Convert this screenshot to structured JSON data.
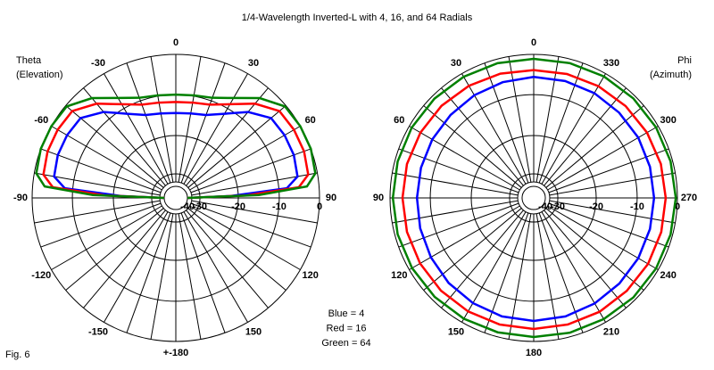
{
  "title": "1/4-Wavelength Inverted-L with 4, 16, and 64 Radials",
  "figure_label": "Fig. 6",
  "chart_data": [
    {
      "type": "polar",
      "direction": "clockwise",
      "label_lines": [
        "Theta",
        "(Elevation)"
      ],
      "angle_ticks": [
        -150,
        -120,
        -90,
        -60,
        -30,
        0,
        30,
        60,
        90,
        120,
        150,
        {
          "value": 180,
          "label": "+-180"
        }
      ],
      "rticks": [
        0,
        -10,
        -20,
        -30,
        -40
      ],
      "x": [
        -90,
        -88,
        -85,
        -80,
        -70,
        -60,
        -50,
        -40,
        -30,
        -20,
        -10,
        0,
        10,
        20,
        30,
        40,
        50,
        60,
        70,
        80,
        85,
        88,
        90
      ],
      "series": [
        {
          "name": "Blue = 4",
          "color": "#0000ff",
          "values": [
            -40,
            -22,
            -8,
            -5,
            -4.5,
            -4.5,
            -4.8,
            -7.8,
            -11.5,
            -13.7,
            -14.3,
            -14.5,
            -14.3,
            -13.7,
            -11.5,
            -7.8,
            -4.8,
            -4.5,
            -4.5,
            -5,
            -8,
            -22,
            -40
          ]
        },
        {
          "name": "Red = 16",
          "color": "#ff0000",
          "values": [
            -40,
            -18,
            -5,
            -2.3,
            -1.8,
            -1.8,
            -2.1,
            -5.1,
            -8.8,
            -11,
            -11.6,
            -11.8,
            -11.6,
            -11,
            -8.8,
            -5.1,
            -2.1,
            -1.8,
            -1.8,
            -2.3,
            -5,
            -18,
            -40
          ]
        },
        {
          "name": "Green = 64",
          "color": "#008000",
          "values": [
            -40,
            -15,
            -3,
            -0.5,
            0,
            0,
            -0.3,
            -3.3,
            -7,
            -9.2,
            -9.8,
            -10,
            -9.8,
            -9.2,
            -7,
            -3.3,
            -0.3,
            0,
            0,
            -0.5,
            -3,
            -15,
            -40
          ]
        }
      ]
    },
    {
      "type": "polar",
      "direction": "counterclockwise",
      "label_lines": [
        "Phi",
        "(Azimuth)"
      ],
      "angle_ticks": [
        0,
        30,
        60,
        90,
        120,
        150,
        180,
        210,
        240,
        270,
        300,
        330
      ],
      "rticks": [
        0,
        -10,
        -20,
        -30,
        -40
      ],
      "x": [
        0,
        15,
        30,
        45,
        60,
        75,
        90,
        105,
        120,
        135,
        150,
        165,
        180,
        195,
        210,
        225,
        240,
        255,
        270,
        285,
        300,
        315,
        330,
        345,
        360
      ],
      "series": [
        {
          "color": "#0000ff",
          "values": [
            -5.6,
            -5.9,
            -6.2,
            -6.5,
            -6.6,
            -6.7,
            -6.7,
            -6.5,
            -6.2,
            -5.8,
            -5.5,
            -5.2,
            -5.1,
            -5.2,
            -5.4,
            -5.6,
            -5.7,
            -5.8,
            -5.8,
            -5.8,
            -5.7,
            -5.7,
            -5.6,
            -5.6,
            -5.6
          ]
        },
        {
          "color": "#ff0000",
          "values": [
            -3.9,
            -3.7,
            -3.5,
            -3.3,
            -3.2,
            -3.1,
            -3.1,
            -3.1,
            -3.1,
            -3.1,
            -3.1,
            -3.1,
            -3.1,
            -3.1,
            -3.0,
            -3.0,
            -2.9,
            -2.9,
            -2.9,
            -3.0,
            -3.2,
            -3.4,
            -3.6,
            -3.8,
            -3.9
          ]
        },
        {
          "color": "#008000",
          "values": [
            -1.1,
            -1.0,
            -0.9,
            -0.8,
            -0.7,
            -0.7,
            -0.7,
            -0.7,
            -0.8,
            -0.9,
            -1.0,
            -1.1,
            -1.1,
            -1.0,
            -0.9,
            -0.7,
            -0.6,
            -0.5,
            -0.4,
            -0.5,
            -0.6,
            -0.7,
            -0.8,
            -1.0,
            -1.1
          ]
        }
      ]
    }
  ]
}
